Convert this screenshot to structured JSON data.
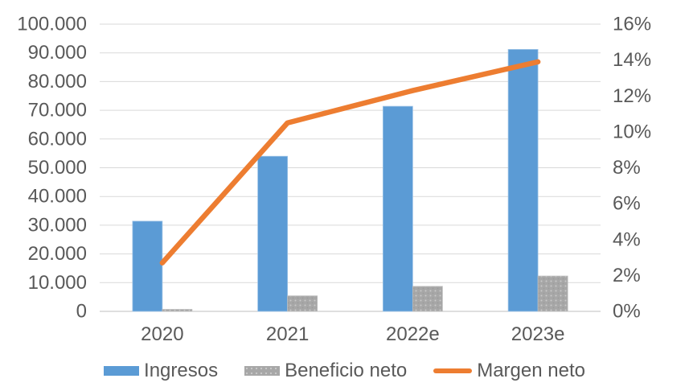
{
  "chart_data": {
    "type": "combo-bar-line",
    "title": "",
    "categories": [
      "2020",
      "2021",
      "2022e",
      "2023e"
    ],
    "series": [
      {
        "name": "Ingresos",
        "type": "bar",
        "axis": "left",
        "color": "#5B9BD5",
        "values": [
          31400,
          54000,
          71400,
          91200
        ]
      },
      {
        "name": "Beneficio neto",
        "type": "bar",
        "axis": "left",
        "color": "#A7A7A7",
        "fill_pattern": "dotted",
        "values": [
          700,
          5400,
          8700,
          12300
        ]
      },
      {
        "name": "Margen neto",
        "type": "line",
        "axis": "right",
        "color": "#ED7D31",
        "values": [
          2.7,
          10.5,
          12.3,
          13.9
        ],
        "unit": "%"
      }
    ],
    "left_axis": {
      "min": 0,
      "max": 100000,
      "step": 10000,
      "tick_labels": [
        "100.000",
        "90.000",
        "80.000",
        "70.000",
        "60.000",
        "50.000",
        "40.000",
        "30.000",
        "20.000",
        "10.000",
        "0"
      ]
    },
    "right_axis": {
      "min": 0,
      "max": 16,
      "step": 2,
      "tick_labels": [
        "16%",
        "14%",
        "12%",
        "10%",
        "8%",
        "6%",
        "4%",
        "2%",
        "0%"
      ]
    },
    "grid": true,
    "legend_position": "bottom",
    "colors": {
      "text": "#595959",
      "gridline": "#D9D9D9",
      "axis_line": "#BFBFBF",
      "background": "#FFFFFF"
    }
  }
}
